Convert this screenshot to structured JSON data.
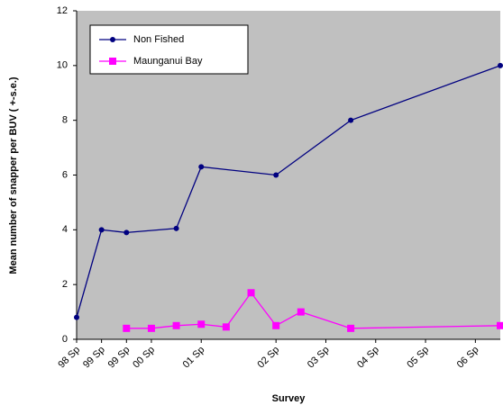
{
  "chart_data": {
    "type": "line",
    "x_label": "Survey",
    "y_label": "Mean number of snapper per BUV ( +-s.e.)",
    "xlim": [
      0,
      17
    ],
    "xticks": [
      {
        "value": 0,
        "label": "98 Sp"
      },
      {
        "value": 1,
        "label": "99 Sp"
      },
      {
        "value": 2,
        "label": "99 Sp"
      },
      {
        "value": 3,
        "label": "00 Sp"
      },
      {
        "value": 5,
        "label": "01 Sp"
      },
      {
        "value": 8,
        "label": "02 Sp"
      },
      {
        "value": 10,
        "label": "03 Sp"
      },
      {
        "value": 12,
        "label": "04 Sp"
      },
      {
        "value": 14,
        "label": "05 Sp"
      },
      {
        "value": 16,
        "label": "06 Sp"
      }
    ],
    "ylim": [
      0,
      12
    ],
    "yticks": [
      0,
      2,
      4,
      6,
      8,
      10,
      12
    ],
    "plot_background": "#c0c0c0",
    "legend": "top-left",
    "series": [
      {
        "name": "Non Fished",
        "color": "#000080",
        "marker": "circle",
        "x": [
          0,
          1,
          2,
          4,
          5,
          8,
          11,
          17
        ],
        "values": [
          0.8,
          4.0,
          3.9,
          4.05,
          6.3,
          6.0,
          8.0,
          10.0
        ]
      },
      {
        "name": "Maunganui Bay",
        "color": "#ff00ff",
        "marker": "square",
        "x": [
          2,
          3,
          4,
          5,
          6,
          7,
          8,
          9,
          11,
          17
        ],
        "values": [
          0.4,
          0.4,
          0.5,
          0.55,
          0.45,
          1.7,
          0.5,
          1.0,
          0.4,
          0.5
        ]
      }
    ]
  }
}
